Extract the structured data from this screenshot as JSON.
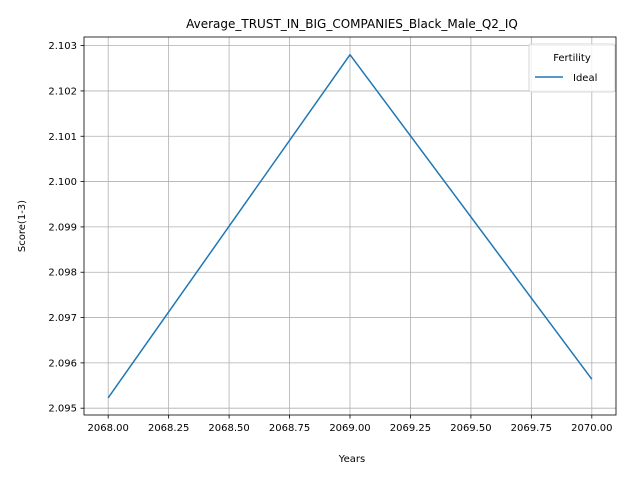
{
  "chart_data": {
    "type": "line",
    "title": "Average_TRUST_IN_BIG_COMPANIES_Black_Male_Q2_IQ",
    "xlabel": "Years",
    "ylabel": "Score(1-3)",
    "x": [
      2068,
      2069,
      2070
    ],
    "series": [
      {
        "name": "Ideal",
        "values": [
          2.09523,
          2.1028,
          2.09564
        ],
        "color": "#1f77b4"
      }
    ],
    "xlim": [
      2067.9,
      2070.1
    ],
    "ylim": [
      2.09485,
      2.10319
    ],
    "xticks": [
      2068.0,
      2068.25,
      2068.5,
      2068.75,
      2069.0,
      2069.25,
      2069.5,
      2069.75,
      2070.0
    ],
    "xtick_labels": [
      "2068.00",
      "2068.25",
      "2068.50",
      "2068.75",
      "2069.00",
      "2069.25",
      "2069.50",
      "2069.75",
      "2070.00"
    ],
    "yticks": [
      2.095,
      2.096,
      2.097,
      2.098,
      2.099,
      2.1,
      2.101,
      2.102,
      2.103
    ],
    "ytick_labels": [
      "2.095",
      "2.096",
      "2.097",
      "2.098",
      "2.099",
      "2.100",
      "2.101",
      "2.102",
      "2.103"
    ],
    "grid": true,
    "legend": {
      "title": "Fertility",
      "placement": "top-right"
    }
  }
}
